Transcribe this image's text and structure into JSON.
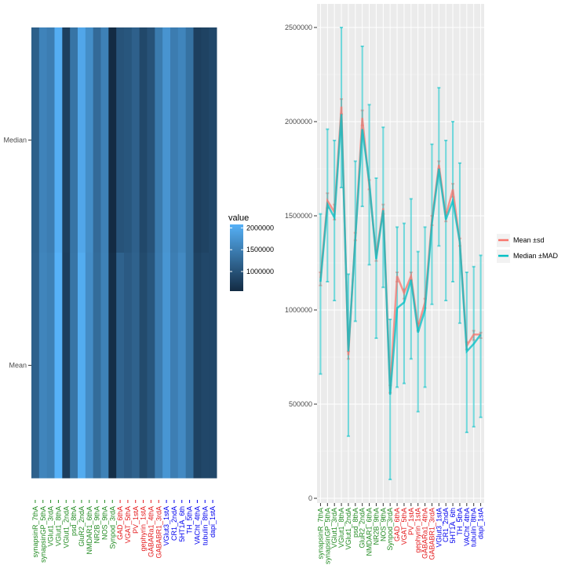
{
  "chart_data": [
    {
      "type": "heatmap",
      "categories": [
        "synapsinR_7thA",
        "synapsinGP_5thA",
        "VGlut1_3rdA",
        "VGlut1_8thA",
        "VGlut1_2ndA",
        "psd_8thA",
        "GluR2_2ndA",
        "NMDAR1_6thA",
        "NR2B_9thA",
        "NOS_9thA",
        "Synpod_3rdA",
        "GAD_6thA",
        "VGAT_5thA",
        "PV_1stA",
        "gephyrin_1stA",
        "GABARa1_4thA",
        "GABABR1_3rdA",
        "VGlut3_1stA",
        "CR1_2ndA",
        "5HT1A_6th",
        "TH_5thA",
        "VACht_4thA",
        "tubulin_8thA",
        "dapi_1stA"
      ],
      "category_colors": [
        "#228b22",
        "#228b22",
        "#228b22",
        "#228b22",
        "#228b22",
        "#228b22",
        "#228b22",
        "#228b22",
        "#228b22",
        "#228b22",
        "#228b22",
        "#e41a1c",
        "#e41a1c",
        "#e41a1c",
        "#e41a1c",
        "#e41a1c",
        "#e41a1c",
        "#0000ee",
        "#0000ee",
        "#0000ee",
        "#0000ee",
        "#0000ee",
        "#0000ee",
        "#0000ee"
      ],
      "rows": [
        "Median",
        "Mean"
      ],
      "values": {
        "Median": [
          1150000,
          1560000,
          1490000,
          2040000,
          780000,
          1380000,
          1960000,
          1680000,
          1270000,
          1530000,
          550000,
          1010000,
          1040000,
          1160000,
          880000,
          1000000,
          1460000,
          1750000,
          1480000,
          1580000,
          1360000,
          780000,
          820000,
          870000
        ],
        "Mean": [
          1170000,
          1580000,
          1520000,
          2080000,
          760000,
          1390000,
          2020000,
          1660000,
          1290000,
          1540000,
          580000,
          1180000,
          1090000,
          1180000,
          910000,
          1040000,
          1480000,
          1770000,
          1500000,
          1640000,
          1360000,
          810000,
          870000,
          870000
        ]
      },
      "legend": {
        "title": "value",
        "ticks": [
          1000000,
          1500000,
          2000000
        ]
      },
      "color_range": [
        "#132b43",
        "#56b1f7"
      ]
    },
    {
      "type": "line",
      "categories": [
        "synapsinR_7thA",
        "synapsinGP_5thA",
        "VGlut1_3rdA",
        "VGlut1_8thA",
        "VGlut1_2ndA",
        "psd_8thA",
        "GluR2_2ndA",
        "NMDAR1_6thA",
        "NR2B_9thA",
        "NOS_9thA",
        "Synpod_3rdA",
        "GAD_6thA",
        "VGAT_5thA",
        "PV_1stA",
        "gephyrin_1stA",
        "GABARa1_4thA",
        "GABABR1_3rdA",
        "VGlut3_1stA",
        "CR1_2ndA",
        "5HT1A_6th",
        "TH_5thA",
        "VACht_4thA",
        "tubulin_8thA",
        "dapi_1stA"
      ],
      "series": [
        {
          "name": "Mean ±sd",
          "color": "#f8766d",
          "values": [
            1170000,
            1580000,
            1520000,
            2080000,
            760000,
            1390000,
            2020000,
            1660000,
            1290000,
            1540000,
            580000,
            1180000,
            1090000,
            1180000,
            910000,
            1040000,
            1480000,
            1770000,
            1500000,
            1640000,
            1360000,
            810000,
            870000,
            870000
          ],
          "low": [
            1130000,
            1540000,
            1480000,
            2040000,
            740000,
            1370000,
            1980000,
            1640000,
            1260000,
            1510000,
            560000,
            1150000,
            1060000,
            1160000,
            890000,
            1010000,
            1450000,
            1750000,
            1470000,
            1600000,
            1340000,
            790000,
            840000,
            850000
          ],
          "high": [
            1200000,
            1620000,
            1560000,
            2120000,
            780000,
            1410000,
            2060000,
            1690000,
            1320000,
            1560000,
            600000,
            1200000,
            1110000,
            1200000,
            930000,
            1060000,
            1500000,
            1790000,
            1520000,
            1670000,
            1380000,
            830000,
            890000,
            880000
          ]
        },
        {
          "name": "Median ±MAD",
          "color": "#00bfc4",
          "values": [
            1150000,
            1560000,
            1490000,
            2040000,
            780000,
            1380000,
            1960000,
            1680000,
            1270000,
            1530000,
            550000,
            1010000,
            1040000,
            1160000,
            880000,
            1000000,
            1460000,
            1750000,
            1480000,
            1580000,
            1360000,
            780000,
            820000,
            870000
          ],
          "low": [
            660000,
            1150000,
            1050000,
            1650000,
            330000,
            940000,
            1550000,
            1240000,
            850000,
            1120000,
            100000,
            590000,
            610000,
            740000,
            460000,
            590000,
            1030000,
            1340000,
            1050000,
            1150000,
            930000,
            350000,
            380000,
            430000
          ],
          "high": [
            1510000,
            1960000,
            1900000,
            2500000,
            1190000,
            1790000,
            2400000,
            2090000,
            1700000,
            1970000,
            950000,
            1440000,
            1460000,
            1590000,
            1310000,
            1440000,
            1880000,
            2180000,
            1900000,
            2000000,
            1780000,
            1200000,
            1230000,
            1290000
          ]
        }
      ],
      "ylim": [
        0,
        2500000
      ],
      "yticks": [
        0,
        500000,
        1000000,
        1500000,
        2000000,
        2500000
      ],
      "legend_placement": "right",
      "grid": true
    }
  ]
}
